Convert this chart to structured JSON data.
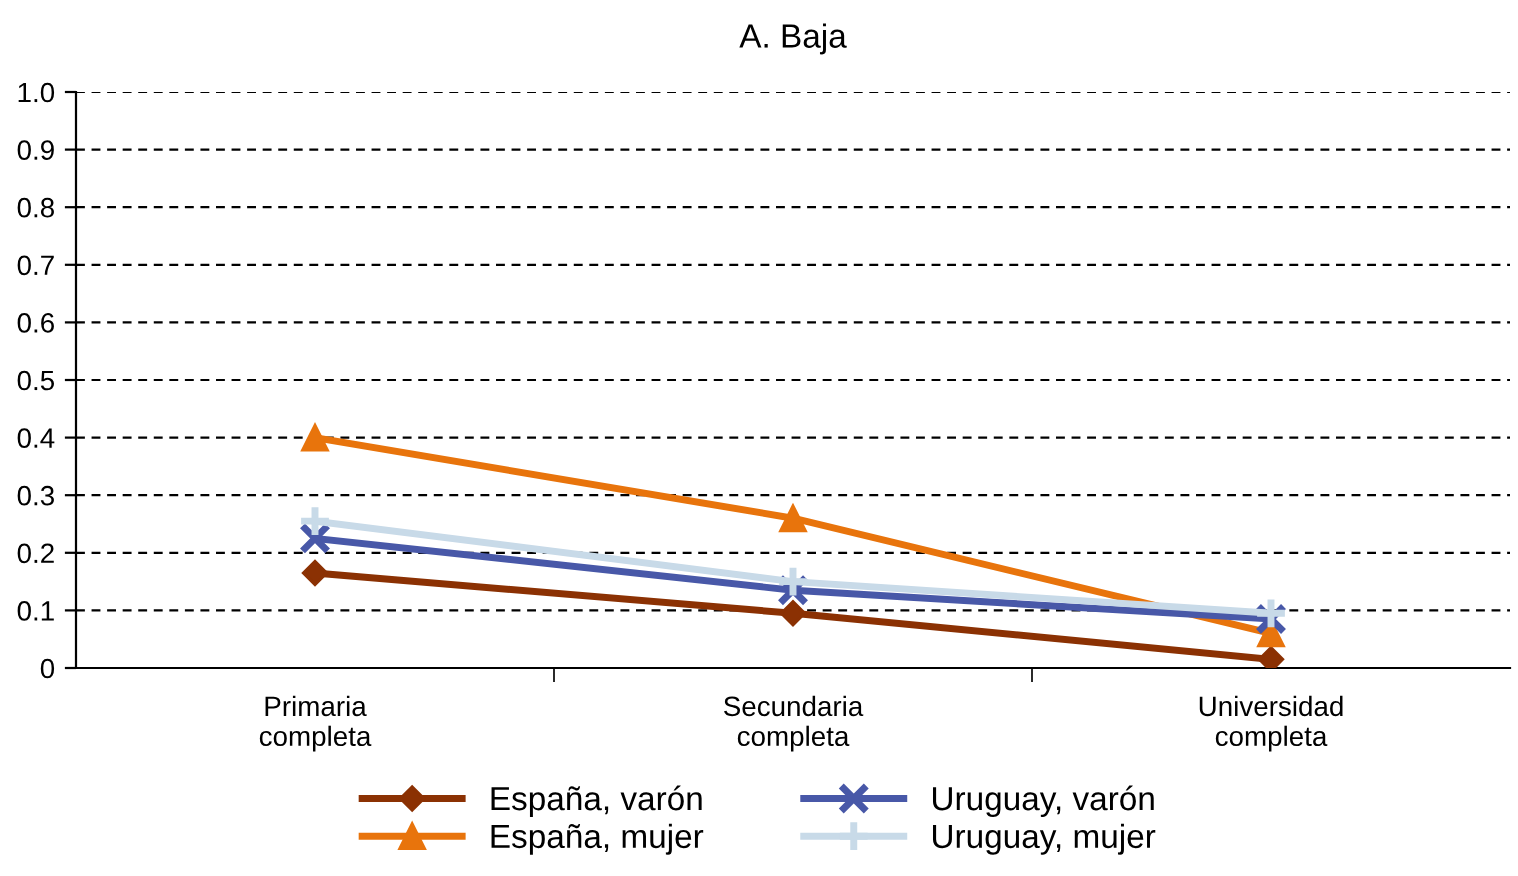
{
  "chart_data": {
    "type": "line",
    "title": "A. Baja",
    "categories": [
      "Primaria\ncompleta",
      "Secundaria\ncompleta",
      "Universidad\ncompleta"
    ],
    "series": [
      {
        "name": "España, varón",
        "color": "#8b3103",
        "marker": "diamond",
        "values": [
          0.165,
          0.095,
          0.015
        ]
      },
      {
        "name": "España, mujer",
        "color": "#e8740c",
        "marker": "triangle",
        "values": [
          0.4,
          0.26,
          0.06
        ]
      },
      {
        "name": "Uruguay, varón",
        "color": "#4858a8",
        "marker": "cross",
        "values": [
          0.225,
          0.135,
          0.085
        ]
      },
      {
        "name": "Uruguay, mujer",
        "color": "#c8dae8",
        "marker": "plus",
        "values": [
          0.255,
          0.15,
          0.095
        ]
      }
    ],
    "ylim": [
      0,
      1.0
    ],
    "yticks": [
      {
        "value": 0,
        "label": "0"
      },
      0.1,
      0.2,
      0.3,
      0.4,
      0.5,
      0.6,
      0.7,
      0.8,
      0.9,
      {
        "value": 1.0,
        "label": "1.0"
      }
    ],
    "grid": "y",
    "legend": "bottom"
  }
}
